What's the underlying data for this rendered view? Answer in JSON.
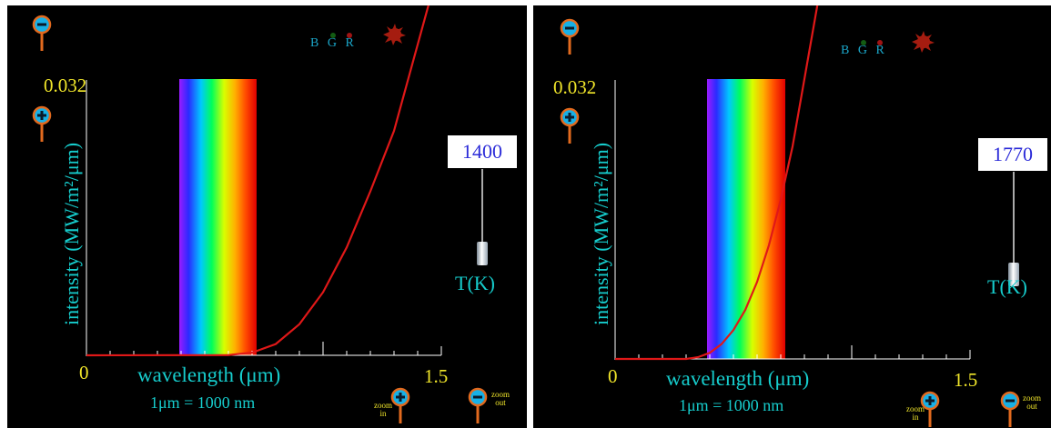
{
  "axis": {
    "ylabel": "intensity (MW/m²/μm)",
    "ymax_label": "0.032",
    "xmin_label": "0",
    "xmax_label": "1.5",
    "xlabel": "wavelength (μm)",
    "unit_note": "1μm  =  1000 nm",
    "ylim": [
      0,
      0.032
    ],
    "xlim": [
      0,
      1.5
    ]
  },
  "indicator": {
    "b": "B",
    "g": "G",
    "r": "R"
  },
  "controls": {
    "temperature_label": "T(K)",
    "zoom_in_label": "zoom in",
    "zoom_out_label": "zoom out"
  },
  "panels": [
    {
      "temperature": "1400"
    },
    {
      "temperature": "1770"
    }
  ],
  "colors": {
    "background": "#000000",
    "axis_text": "#16cccc",
    "tick_text": "#f1e62a",
    "curve": "#e01818",
    "temperature_text": "#2b2bd8"
  },
  "chart_data": [
    {
      "type": "line",
      "title": "",
      "xlabel": "wavelength (μm)",
      "ylabel": "intensity (MW/m²/μm)",
      "xlim": [
        0,
        1.5
      ],
      "ylim": [
        0,
        0.032
      ],
      "series": [
        {
          "x": [
            0.6,
            0.7,
            0.8,
            0.9,
            1.0,
            1.1,
            1.2,
            1.3,
            1.36
          ],
          "y": [
            3e-05,
            0.0003,
            0.0013,
            0.0036,
            0.0073,
            0.0125,
            0.019,
            0.026,
            0.032
          ]
        }
      ]
    },
    {
      "type": "line",
      "title": "",
      "xlabel": "wavelength (μm)",
      "ylabel": "intensity (MW/m²/μm)",
      "xlim": [
        0,
        1.5
      ],
      "ylim": [
        0,
        0.032
      ],
      "series": [
        {
          "x": [
            0.3,
            0.35,
            0.4,
            0.45,
            0.5,
            0.55,
            0.6,
            0.65,
            0.7,
            0.75,
            0.8
          ],
          "y": [
            0,
            0.0002,
            0.0007,
            0.0017,
            0.0033,
            0.0056,
            0.0088,
            0.013,
            0.0182,
            0.0243,
            0.032
          ]
        }
      ]
    }
  ]
}
